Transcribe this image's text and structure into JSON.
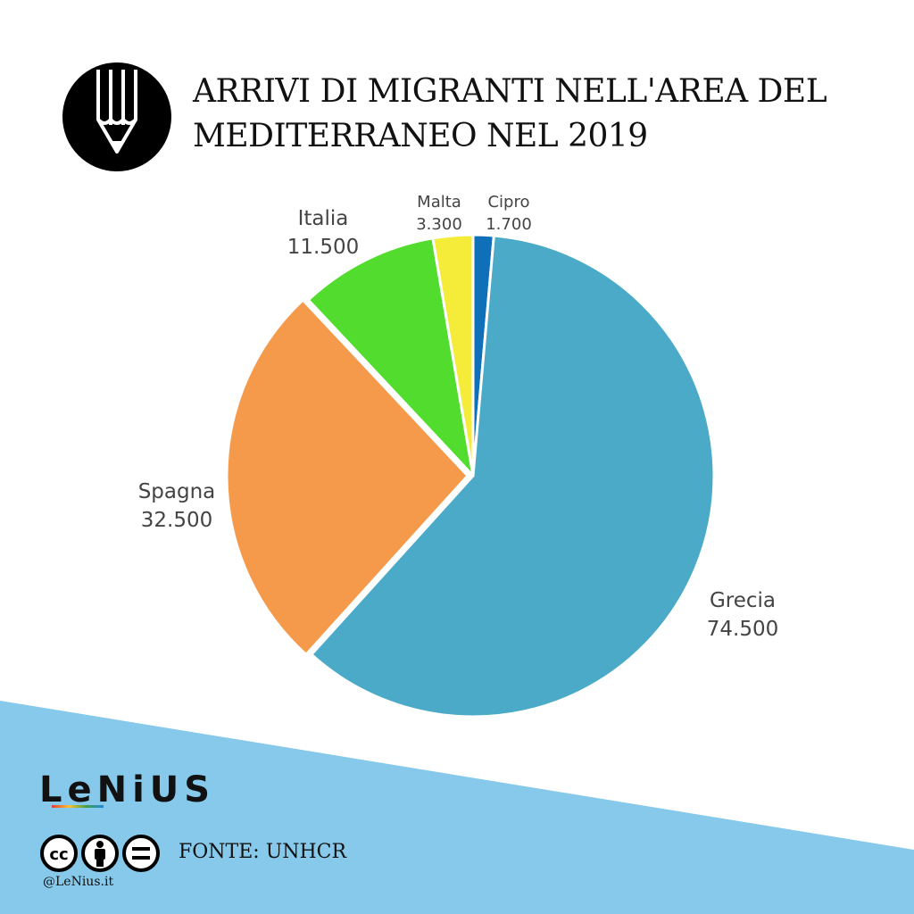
{
  "header": {
    "title_line1": "ARRIVI DI MIGRANTI NELL'AREA DEL",
    "title_line2": "MEDITERRANEO NEL 2019",
    "logo_icon": "pencil-icon"
  },
  "chart_data": {
    "type": "pie",
    "title": "ARRIVI DI MIGRANTI NELL'AREA DEL MEDITERRANEO NEL 2019",
    "categories": [
      "Cipro",
      "Grecia",
      "Spagna",
      "Italia",
      "Malta"
    ],
    "values": [
      1700,
      74500,
      32500,
      11500,
      3300
    ],
    "value_labels": [
      "1.700",
      "74.500",
      "32.500",
      "11.500",
      "3.300"
    ],
    "colors": [
      "#0f6fb8",
      "#4baac8",
      "#f5994a",
      "#52dc2e",
      "#f5ec3a"
    ],
    "exploded": [
      "Spagna"
    ]
  },
  "footer": {
    "brand": "LeNiUS",
    "cc_icons": [
      "cc-icon",
      "by-icon",
      "nd-icon"
    ],
    "source": "FONTE: UNHCR",
    "handle": "@LeNius.it",
    "band_color": "#86c9ea"
  }
}
